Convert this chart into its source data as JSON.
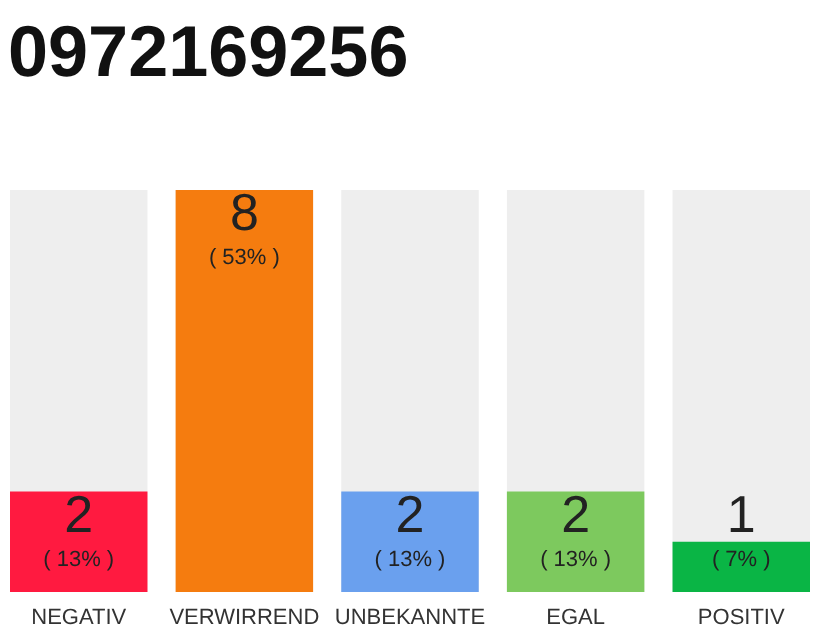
{
  "chart_data": {
    "type": "bar",
    "title": "0972169256",
    "categories": [
      "NEGATIV",
      "VERWIRREND",
      "UNBEKANNTE",
      "EGAL",
      "POSITIV"
    ],
    "values": [
      2,
      8,
      2,
      2,
      1
    ],
    "colors": [
      "#ff1a40",
      "#f57c0f",
      "#6aa0ee",
      "#7dc95e",
      "#0ab545"
    ],
    "ylim": [
      0,
      8
    ],
    "data_labels": true,
    "annotations": [
      {
        "text": "( 13% )",
        "x": "NEGATIV",
        "y": 2
      },
      {
        "text": "( 53% )",
        "x": "VERWIRREND",
        "y": 8
      },
      {
        "text": "( 13% )",
        "x": "UNBEKANNTE",
        "y": 2
      },
      {
        "text": "( 13% )",
        "x": "EGAL",
        "y": 2
      },
      {
        "text": "( 7% )",
        "x": "POSITIV",
        "y": 1
      }
    ]
  }
}
